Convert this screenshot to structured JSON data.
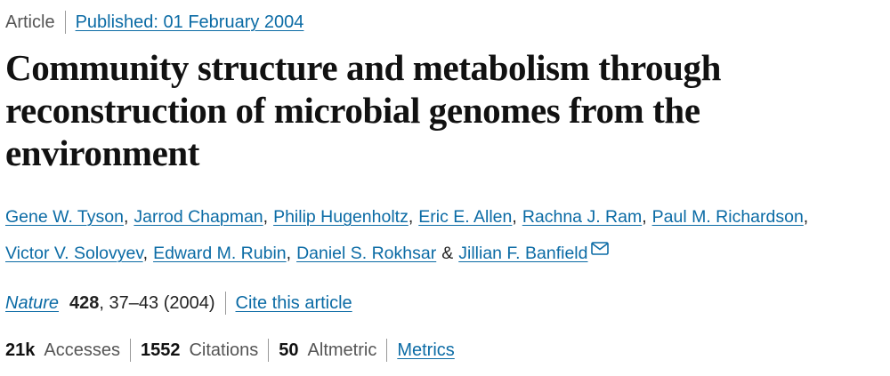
{
  "header": {
    "article_type": "Article",
    "published": "Published: 01 February 2004"
  },
  "title": "Community structure and metabolism through reconstruction of microbial genomes from the environment",
  "authors": [
    "Gene W. Tyson",
    "Jarrod Chapman",
    "Philip Hugenholtz",
    "Eric E. Allen",
    "Rachna J. Ram",
    "Paul M. Richardson",
    "Victor V. Solovyev",
    "Edward M. Rubin",
    "Daniel S. Rokhsar",
    "Jillian F. Banfield"
  ],
  "author_separator": ",",
  "last_author_separator": "&",
  "citation": {
    "journal": "Nature",
    "volume": "428",
    "details": ", 37–43 (2004)",
    "cite_link": "Cite this article"
  },
  "metrics": {
    "items": [
      {
        "value": "21k",
        "label": "Accesses"
      },
      {
        "value": "1552",
        "label": "Citations"
      },
      {
        "value": "50",
        "label": "Altmetric"
      }
    ],
    "link": "Metrics"
  }
}
